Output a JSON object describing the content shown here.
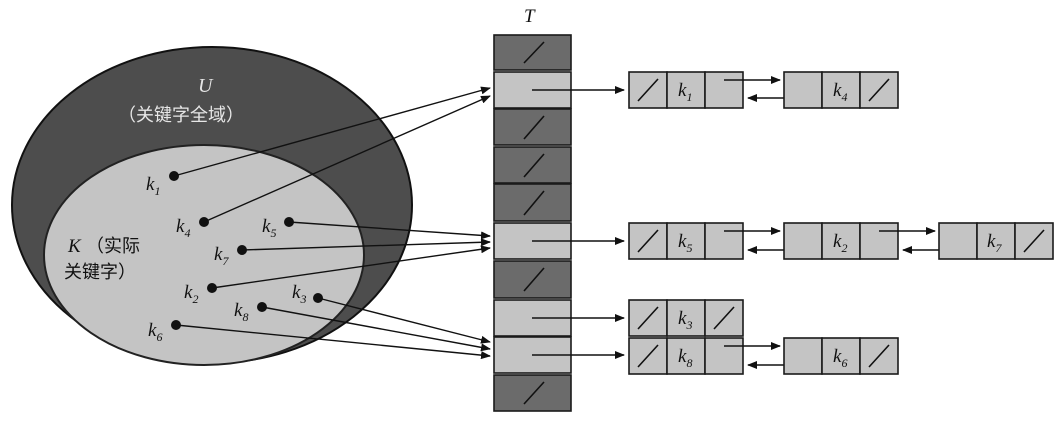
{
  "universe": {
    "symbol": "U",
    "caption": "（关键字全域）"
  },
  "actual": {
    "symbol": "K",
    "caption_line1": "（实际",
    "caption_line2": "关键字）"
  },
  "table_title": "T",
  "keys": [
    {
      "base": "k",
      "sub": "1"
    },
    {
      "base": "k",
      "sub": "4"
    },
    {
      "base": "k",
      "sub": "5"
    },
    {
      "base": "k",
      "sub": "7"
    },
    {
      "base": "k",
      "sub": "2"
    },
    {
      "base": "k",
      "sub": "3"
    },
    {
      "base": "k",
      "sub": "8"
    },
    {
      "base": "k",
      "sub": "6"
    }
  ],
  "chains": [
    {
      "slot": 1,
      "nodes": [
        {
          "base": "k",
          "sub": "1"
        },
        {
          "base": "k",
          "sub": "4"
        }
      ]
    },
    {
      "slot": 5,
      "nodes": [
        {
          "base": "k",
          "sub": "5"
        },
        {
          "base": "k",
          "sub": "2"
        },
        {
          "base": "k",
          "sub": "7"
        }
      ]
    },
    {
      "slot": 7,
      "nodes": [
        {
          "base": "k",
          "sub": "3"
        }
      ]
    },
    {
      "slot": 8,
      "nodes": [
        {
          "base": "k",
          "sub": "8"
        },
        {
          "base": "k",
          "sub": "6"
        }
      ]
    }
  ],
  "colors": {
    "universe_fill": "#4d4d4d",
    "actual_fill": "#c4c4c4",
    "table_empty": "#6b6b6b",
    "table_used": "#c4c4c4",
    "node_fill": "#c4c4c4"
  }
}
